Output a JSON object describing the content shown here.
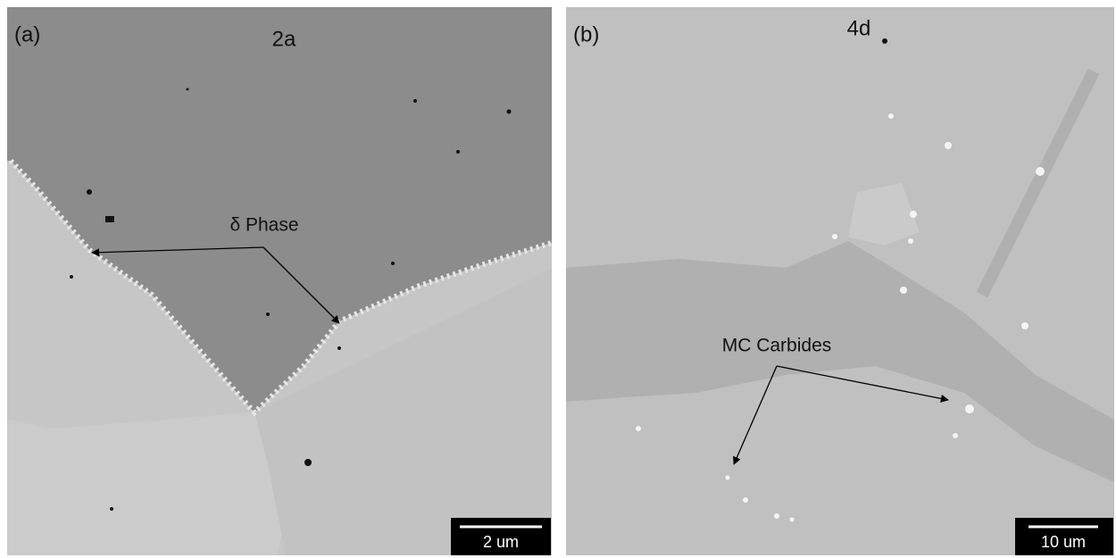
{
  "panels": [
    {
      "label": "(a)",
      "title": "2a",
      "annotation": "δ Phase",
      "scale_bar": "2 um"
    },
    {
      "label": "(b)",
      "title": "4d",
      "annotation": "MC Carbides",
      "scale_bar": "10 um"
    }
  ]
}
